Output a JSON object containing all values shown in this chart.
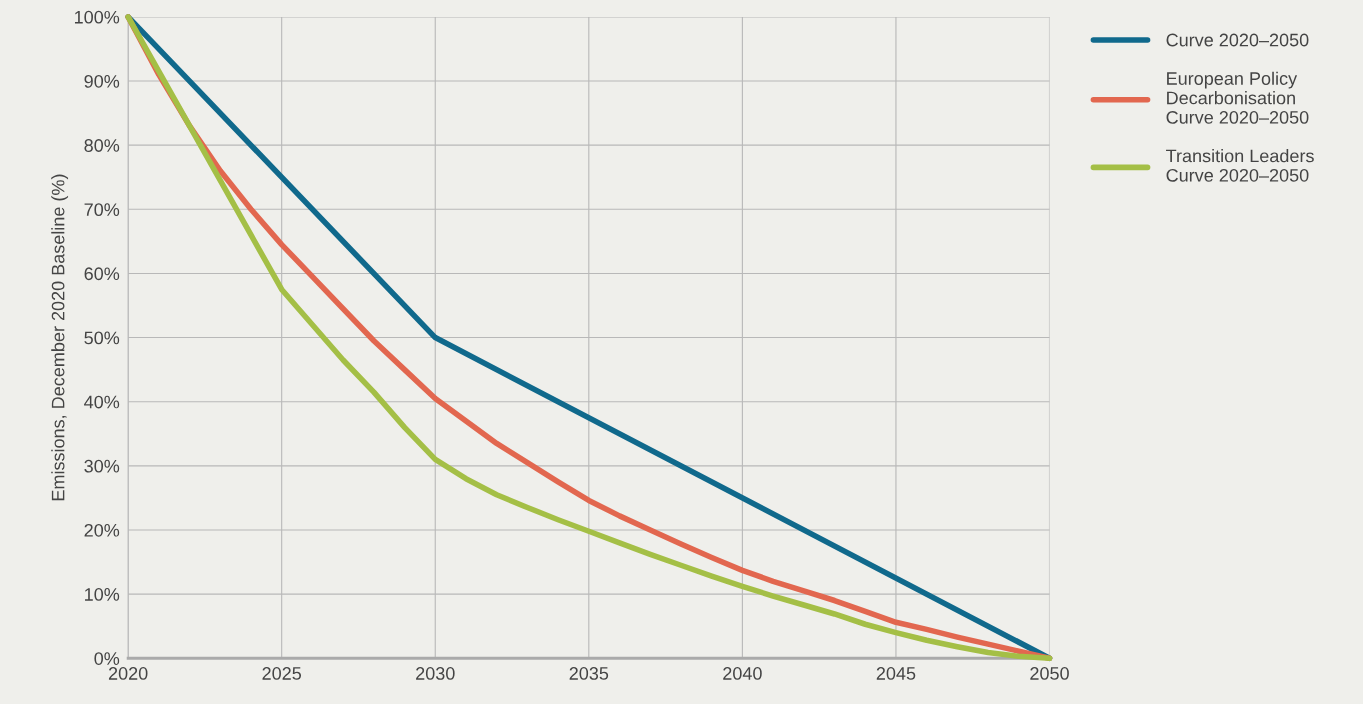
{
  "chart_data": {
    "type": "line",
    "ylabel": "Emissions, December 2020 Baseline (%)",
    "x": [
      2020,
      2021,
      2022,
      2023,
      2024,
      2025,
      2026,
      2027,
      2028,
      2029,
      2030,
      2031,
      2032,
      2033,
      2034,
      2035,
      2036,
      2037,
      2038,
      2039,
      2040,
      2041,
      2042,
      2043,
      2044,
      2045,
      2046,
      2047,
      2048,
      2049,
      2050
    ],
    "series": [
      {
        "name": "Curve 2020–2050",
        "color": "#10698c",
        "x": [
          2020,
          2030,
          2050
        ],
        "values": [
          100,
          50,
          0
        ]
      },
      {
        "name": "European Policy Decarbonisation Curve 2020–2050",
        "color": "#e2674f",
        "values": [
          100,
          91,
          83,
          76,
          70,
          64.5,
          59.5,
          54.5,
          49.5,
          45,
          40.5,
          37,
          33.5,
          30.5,
          27.5,
          24.6,
          22.2,
          20,
          17.8,
          15.7,
          13.7,
          12,
          10.5,
          9,
          7.3,
          5.6,
          4.5,
          3.3,
          2.2,
          1.1,
          0
        ]
      },
      {
        "name": "Transition Leaders Curve 2020–2050",
        "color": "#a4bf46",
        "values": [
          100,
          91.5,
          83,
          74.5,
          66,
          57.5,
          52,
          46.5,
          41.5,
          36,
          31,
          28,
          25.5,
          23.5,
          21.6,
          19.8,
          18,
          16.2,
          14.5,
          12.8,
          11.2,
          9.7,
          8.3,
          6.9,
          5.3,
          4,
          2.8,
          1.8,
          0.9,
          0.3,
          0
        ]
      }
    ],
    "xlim": [
      2020,
      2050
    ],
    "xticks": [
      2020,
      2025,
      2030,
      2035,
      2040,
      2045,
      2050
    ],
    "ylim": [
      0,
      100
    ],
    "yticks": [
      {
        "value": 0,
        "label": "0%"
      },
      {
        "value": 10,
        "label": "10%"
      },
      {
        "value": 20,
        "label": "20%"
      },
      {
        "value": 30,
        "label": "30%"
      },
      {
        "value": 40,
        "label": "40%"
      },
      {
        "value": 50,
        "label": "50%"
      },
      {
        "value": 60,
        "label": "60%"
      },
      {
        "value": 70,
        "label": "70%"
      },
      {
        "value": 80,
        "label": "80%"
      },
      {
        "value": 90,
        "label": "90%"
      },
      {
        "value": 100,
        "label": "100%"
      }
    ],
    "grid": true,
    "legend": "top right",
    "marker": "none",
    "line_style": "solid"
  }
}
